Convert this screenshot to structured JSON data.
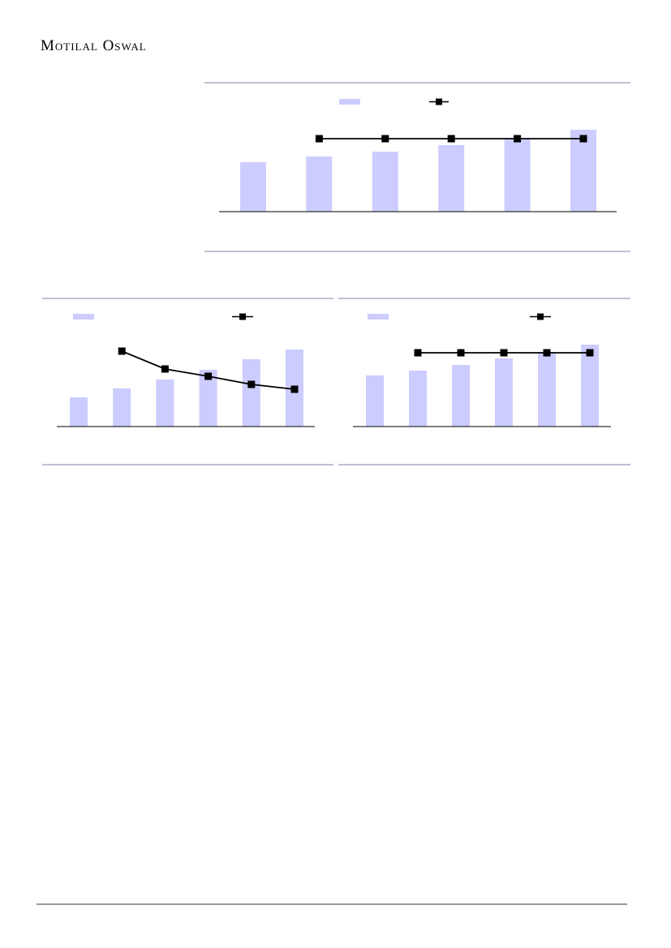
{
  "header": {
    "brand": "Motilal Oswal"
  },
  "charts": [
    {
      "type": "bar-line",
      "ylim": [
        0,
        110
      ],
      "series": [
        {
          "type": "bar",
          "color": "#ccccff",
          "values": [
            61,
            68,
            74,
            82,
            90,
            101
          ]
        },
        {
          "type": "line",
          "color": "#000000",
          "values": [
            null,
            90,
            90,
            90,
            90,
            90
          ]
        }
      ]
    },
    {
      "type": "bar-line",
      "ylim": [
        0,
        110
      ],
      "series": [
        {
          "type": "bar",
          "color": "#ccccff",
          "values": [
            36,
            47,
            58,
            70,
            83,
            95
          ]
        },
        {
          "type": "line",
          "color": "#000000",
          "values": [
            null,
            93,
            71,
            62,
            52,
            46
          ]
        }
      ]
    },
    {
      "type": "bar-line",
      "ylim": [
        0,
        110
      ],
      "series": [
        {
          "type": "bar",
          "color": "#ccccff",
          "values": [
            63,
            69,
            76,
            84,
            91,
            101
          ]
        },
        {
          "type": "line",
          "color": "#000000",
          "values": [
            null,
            91,
            91,
            91,
            91,
            91
          ]
        }
      ]
    }
  ]
}
